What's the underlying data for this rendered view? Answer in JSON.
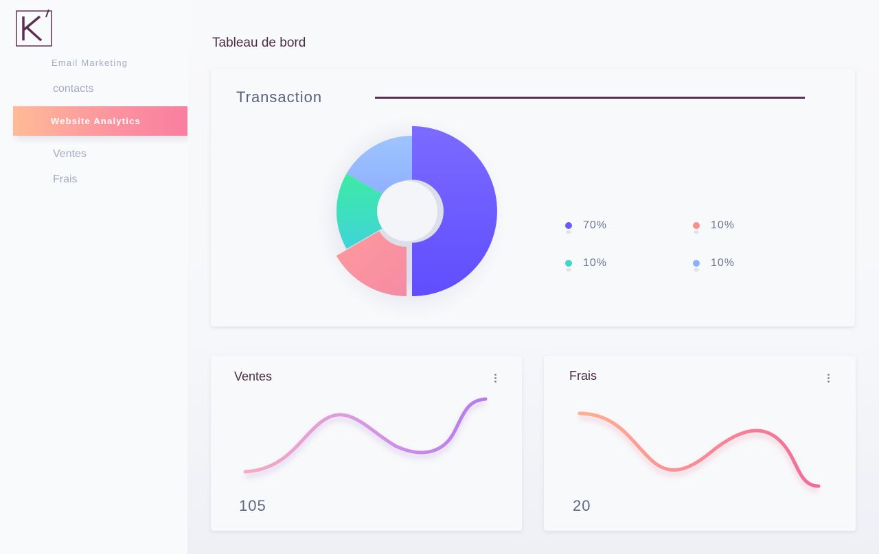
{
  "brand": {
    "logo_letter": "K"
  },
  "sidebar": {
    "items": [
      {
        "label": "Email Marketing"
      },
      {
        "label": "contacts"
      },
      {
        "label": "Website Analytics",
        "active": true
      },
      {
        "label": "Ventes"
      },
      {
        "label": "Frais"
      }
    ]
  },
  "page": {
    "title": "Tableau de bord"
  },
  "transaction": {
    "title": "Transaction",
    "legend": [
      {
        "label": "70%",
        "color": "#6a5cff"
      },
      {
        "label": "10%",
        "color": "#fd8d8d"
      },
      {
        "label": "10%",
        "color": "#3fd8c4"
      },
      {
        "label": "10%",
        "color": "#8ab0ff"
      }
    ]
  },
  "chart_data": {
    "type": "pie",
    "values": [
      70,
      10,
      10,
      10
    ],
    "labels": [
      "70%",
      "10%",
      "10%",
      "10%"
    ],
    "colors": [
      "#6a5cff",
      "#fd8d8d",
      "#3fd8c4",
      "#8ab0ff"
    ]
  },
  "ventes": {
    "title": "Ventes",
    "value": "105",
    "menu_icon": "kebab-icon"
  },
  "frais": {
    "title": "Frais",
    "value": "20",
    "menu_icon": "kebab-icon"
  },
  "colors": {
    "accent_gradient_start": "#ffbb96",
    "accent_gradient_end": "#f97da0",
    "title_color": "#4c2d44"
  }
}
